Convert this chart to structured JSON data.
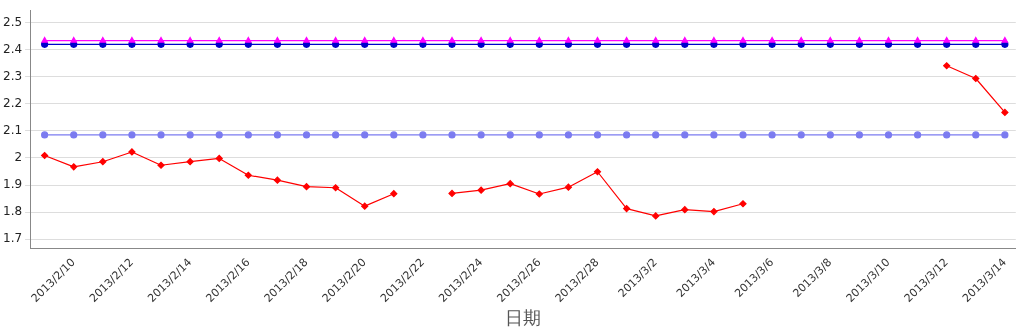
{
  "chart_data": {
    "type": "line",
    "xlabel": "日期",
    "x": [
      "2013-02-09",
      "2013-02-10",
      "2013-02-11",
      "2013-02-12",
      "2013-02-13",
      "2013-02-14",
      "2013-02-15",
      "2013-02-16",
      "2013-02-17",
      "2013-02-18",
      "2013-02-19",
      "2013-02-20",
      "2013-02-21",
      "2013-02-22",
      "2013-02-23",
      "2013-02-24",
      "2013-02-25",
      "2013-02-26",
      "2013-02-27",
      "2013-02-28",
      "2013-03-01",
      "2013-03-02",
      "2013-03-03",
      "2013-03-04",
      "2013-03-05",
      "2013-03-06",
      "2013-03-07",
      "2013-03-08",
      "2013-03-09",
      "2013-03-10",
      "2013-03-11",
      "2013-03-12",
      "2013-03-13",
      "2013-03-14"
    ],
    "series": [
      {
        "color": "#ff00ff",
        "marker": "triangle",
        "values": [
          2.433,
          2.433,
          2.433,
          2.433,
          2.433,
          2.433,
          2.433,
          2.433,
          2.433,
          2.433,
          2.433,
          2.433,
          2.433,
          2.433,
          2.433,
          2.433,
          2.433,
          2.433,
          2.433,
          2.433,
          2.433,
          2.433,
          2.433,
          2.433,
          2.433,
          2.433,
          2.433,
          2.433,
          2.433,
          2.433,
          2.433,
          2.433,
          2.433,
          2.433
        ]
      },
      {
        "color": "#0000cc",
        "marker": "circle",
        "values": [
          2.419,
          2.419,
          2.419,
          2.419,
          2.419,
          2.419,
          2.419,
          2.419,
          2.419,
          2.419,
          2.419,
          2.419,
          2.419,
          2.419,
          2.419,
          2.419,
          2.419,
          2.419,
          2.419,
          2.419,
          2.419,
          2.419,
          2.419,
          2.419,
          2.419,
          2.419,
          2.419,
          2.419,
          2.419,
          2.419,
          2.419,
          2.419,
          2.419,
          2.419
        ]
      },
      {
        "color": "#7b7bf0",
        "marker": "circle",
        "values": [
          2.085,
          2.085,
          2.085,
          2.085,
          2.085,
          2.085,
          2.085,
          2.085,
          2.085,
          2.085,
          2.085,
          2.085,
          2.085,
          2.085,
          2.085,
          2.085,
          2.085,
          2.085,
          2.085,
          2.085,
          2.085,
          2.085,
          2.085,
          2.085,
          2.085,
          2.085,
          2.085,
          2.085,
          2.085,
          2.085,
          2.085,
          2.085,
          2.085,
          2.085
        ]
      },
      {
        "color": "#ff0000",
        "marker": "diamond",
        "values": [
          2.009,
          1.967,
          1.986,
          2.022,
          1.973,
          1.986,
          1.998,
          1.936,
          1.918,
          1.894,
          1.89,
          1.822,
          1.868,
          null,
          1.869,
          1.881,
          1.905,
          1.867,
          1.892,
          1.949,
          1.813,
          1.786,
          1.809,
          1.802,
          1.831,
          null,
          null,
          null,
          null,
          null,
          null,
          2.34,
          2.293,
          2.168
        ]
      }
    ],
    "xlim": [
      "2013-02-08T12:00",
      "2013-03-14T09:00"
    ],
    "xticks": [
      {
        "value": "2013-02-10",
        "label": "2013/2/10"
      },
      {
        "value": "2013-02-12",
        "label": "2013/2/12"
      },
      {
        "value": "2013-02-14",
        "label": "2013/2/14"
      },
      {
        "value": "2013-02-16",
        "label": "2013/2/16"
      },
      {
        "value": "2013-02-18",
        "label": "2013/2/18"
      },
      {
        "value": "2013-02-20",
        "label": "2013/2/20"
      },
      {
        "value": "2013-02-22",
        "label": "2013/2/22"
      },
      {
        "value": "2013-02-24",
        "label": "2013/2/24"
      },
      {
        "value": "2013-02-26",
        "label": "2013/2/26"
      },
      {
        "value": "2013-02-28",
        "label": "2013/2/28"
      },
      {
        "value": "2013-03-02",
        "label": "2013/3/2"
      },
      {
        "value": "2013-03-04",
        "label": "2013/3/4"
      },
      {
        "value": "2013-03-06",
        "label": "2013/3/6"
      },
      {
        "value": "2013-03-08",
        "label": "2013/3/8"
      },
      {
        "value": "2013-03-10",
        "label": "2013/3/10"
      },
      {
        "value": "2013-03-12",
        "label": "2013/3/12"
      },
      {
        "value": "2013-03-14",
        "label": "2013/3/14"
      }
    ],
    "ylim": [
      1.667,
      2.545
    ],
    "yticks": [
      1.7,
      1.8,
      1.9,
      2,
      2.1,
      2.2,
      2.3,
      2.4,
      2.5
    ],
    "grid": "y",
    "legend": false,
    "line_style": "solid"
  }
}
